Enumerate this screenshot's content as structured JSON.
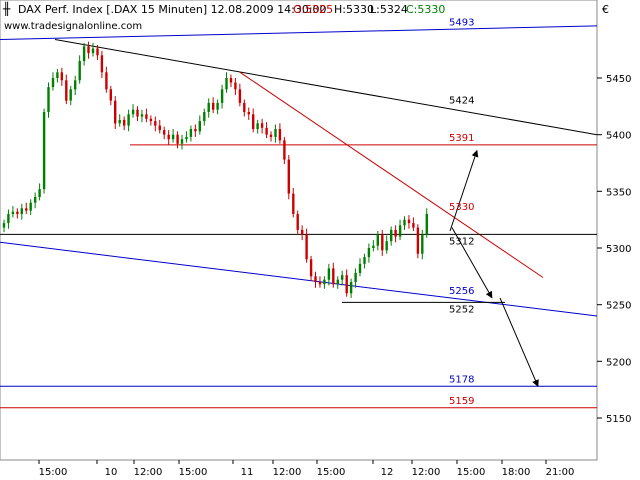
{
  "header": {
    "title": "DAX Perf. Index [.DAX  15 Minuten] 12.08.2009 14:30:00",
    "open_label": "O:5325",
    "high_label": "H:5330",
    "low_label": "L:5324",
    "close_label": "C:5330",
    "source": "www.tradesignalonline.com",
    "currency": "€"
  },
  "chart_data": {
    "type": "candlestick",
    "title": "DAX Perf. Index [.DAX  15 Minuten] 12.08.2009 14:30:00",
    "ylim": [
      5125,
      5510
    ],
    "y_ticks": [
      5150,
      5200,
      5250,
      5300,
      5350,
      5400,
      5450
    ],
    "x_ticks": [
      "15:00",
      "10",
      "12:00",
      "15:00",
      "11",
      "12:00",
      "15:00",
      "12",
      "12:00",
      "15:00",
      "18:00",
      "21:00"
    ],
    "grid": false,
    "close_series": [
      5322,
      5330,
      5332,
      5330,
      5335,
      5333,
      5340,
      5345,
      5352,
      5420,
      5442,
      5450,
      5455,
      5448,
      5430,
      5440,
      5448,
      5465,
      5478,
      5472,
      5476,
      5470,
      5455,
      5440,
      5430,
      5410,
      5413,
      5408,
      5418,
      5422,
      5416,
      5418,
      5414,
      5412,
      5408,
      5404,
      5400,
      5396,
      5400,
      5392,
      5396,
      5398,
      5405,
      5403,
      5412,
      5420,
      5428,
      5422,
      5428,
      5440,
      5450,
      5446,
      5440,
      5428,
      5420,
      5418,
      5405,
      5410,
      5406,
      5400,
      5398,
      5405,
      5395,
      5378,
      5348,
      5330,
      5316,
      5312,
      5290,
      5275,
      5270,
      5268,
      5272,
      5282,
      5268,
      5272,
      5276,
      5260,
      5270,
      5278,
      5286,
      5292,
      5300,
      5302,
      5312,
      5298,
      5306,
      5316,
      5310,
      5320,
      5325,
      5322,
      5318,
      5295,
      5312,
      5330
    ],
    "levels": [
      {
        "label": "5424",
        "value": 5424,
        "color": "#000000"
      },
      {
        "label": "5391",
        "value": 5391,
        "color": "#cc0000"
      },
      {
        "label": "5330",
        "value": 5330,
        "color": "#cc0000"
      },
      {
        "label": "5312",
        "value": 5312,
        "color": "#000000"
      },
      {
        "label": "5256",
        "value": 5256,
        "color": "#0000cc"
      },
      {
        "label": "5252",
        "value": 5252,
        "color": "#000000"
      },
      {
        "label": "5178",
        "value": 5178,
        "color": "#0000cc"
      },
      {
        "label": "5159",
        "value": 5159,
        "color": "#cc0000"
      },
      {
        "label": "5493",
        "value": 5493,
        "color": "#0000cc"
      }
    ],
    "colors": {
      "up": "#008000",
      "down": "#cc0000",
      "blue_line": "#0000cc",
      "red_line": "#cc0000",
      "black_line": "#000000"
    }
  }
}
